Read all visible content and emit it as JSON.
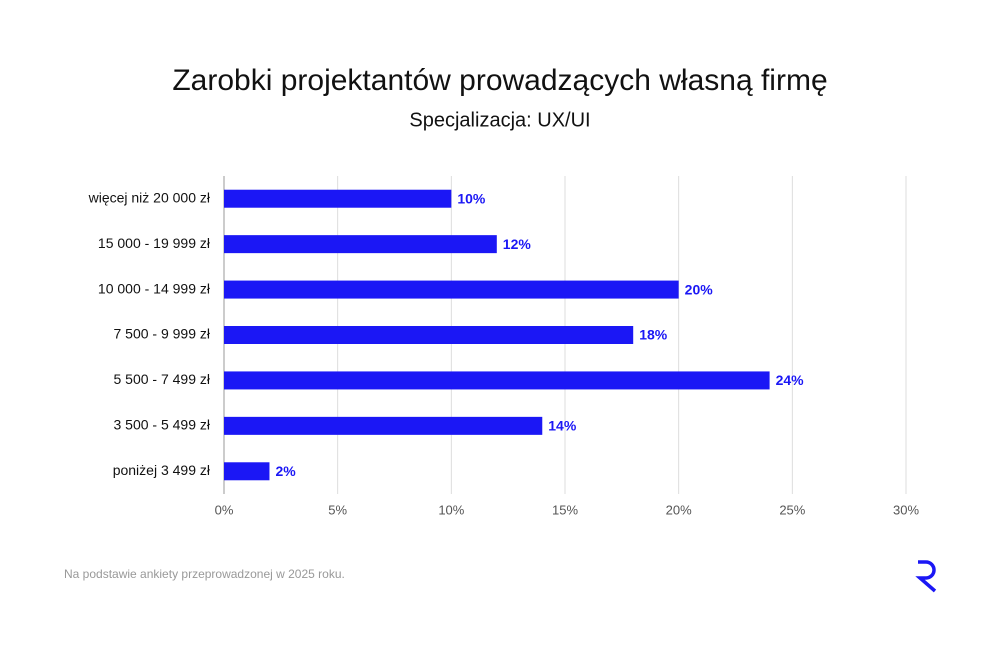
{
  "chart_data": {
    "type": "bar",
    "orientation": "horizontal",
    "title": "Zarobki projektantów prowadzących własną firmę",
    "subtitle": "Specjalizacja: UX/UI",
    "note": "Na podstawie ankiety przeprowadzonej w 2025 roku.",
    "categories": [
      "więcej niż 20 000 zł",
      "15 000 - 19 999 zł",
      "10 000 - 14 999 zł",
      "7 500 - 9 999 zł",
      "5 500 - 7 499 zł",
      "3 500 - 5 499 zł",
      "poniżej 3 499 zł"
    ],
    "values": [
      10,
      12,
      20,
      18,
      24,
      14,
      2
    ],
    "value_labels": [
      "10%",
      "12%",
      "20%",
      "18%",
      "24%",
      "14%",
      "2%"
    ],
    "color": "#1b17f5",
    "xlim": [
      0,
      30
    ],
    "xticks": [
      {
        "value": 0,
        "label": "0%"
      },
      {
        "value": 5,
        "label": "5%"
      },
      {
        "value": 10,
        "label": "10%"
      },
      {
        "value": 15,
        "label": "15%"
      },
      {
        "value": 20,
        "label": "20%"
      },
      {
        "value": 25,
        "label": "25%"
      },
      {
        "value": 30,
        "label": "30%"
      }
    ],
    "grid": true
  }
}
